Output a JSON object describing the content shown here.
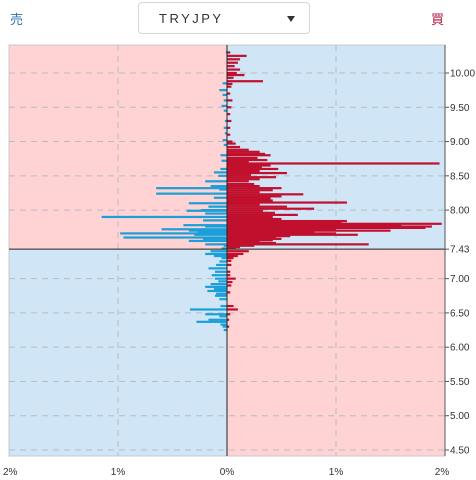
{
  "header": {
    "sell_label": "売",
    "buy_label": "買",
    "pair": "TRYJPY",
    "caret_icon": "chevron-down-icon"
  },
  "colors": {
    "sell_bar": "#1a9fd9",
    "buy_bar": "#c0102e",
    "pink_bg": "#ffd3d3",
    "blue_bg": "#d0e6f6"
  },
  "chart_data": {
    "type": "bar",
    "orientation": "horizontal",
    "current_price": 7.43,
    "current_price_label": "7.43",
    "ylim": [
      4.45,
      10.5
    ],
    "xlim": [
      -2,
      2
    ],
    "y_ticks": [
      "10.00",
      "9.50",
      "9.00",
      "8.50",
      "8.00",
      "7.43",
      "7.00",
      "6.50",
      "6.00",
      "5.50",
      "5.00",
      "4.50"
    ],
    "y_tick_values": [
      10.0,
      9.5,
      9.0,
      8.5,
      8.0,
      7.43,
      7.0,
      6.5,
      6.0,
      5.5,
      5.0,
      4.5
    ],
    "x_ticks": [
      "2%",
      "1%",
      "0%",
      "1%",
      "2%"
    ],
    "x_tick_values": [
      -2,
      -1,
      0,
      1,
      2
    ],
    "grid": true,
    "buy_positions": [
      [
        10.3,
        0.03
      ],
      [
        10.25,
        0.18
      ],
      [
        10.2,
        0.12
      ],
      [
        10.15,
        0.1
      ],
      [
        10.1,
        0.07
      ],
      [
        10.05,
        0.12
      ],
      [
        10.0,
        0.09
      ],
      [
        9.97,
        0.16
      ],
      [
        9.93,
        0.06
      ],
      [
        9.88,
        0.33
      ],
      [
        9.84,
        0.05
      ],
      [
        9.8,
        0.04
      ],
      [
        9.7,
        0.03
      ],
      [
        9.6,
        0.05
      ],
      [
        9.5,
        0.04
      ],
      [
        9.4,
        0.03
      ],
      [
        9.3,
        0.04
      ],
      [
        9.2,
        0.03
      ],
      [
        9.1,
        0.03
      ],
      [
        9.0,
        0.05
      ],
      [
        8.97,
        0.08
      ],
      [
        8.92,
        0.12
      ],
      [
        8.88,
        0.2
      ],
      [
        8.85,
        0.3
      ],
      [
        8.82,
        0.35
      ],
      [
        8.8,
        0.4
      ],
      [
        8.76,
        0.28
      ],
      [
        8.73,
        0.37
      ],
      [
        8.7,
        0.2
      ],
      [
        8.68,
        1.95
      ],
      [
        8.65,
        0.4
      ],
      [
        8.62,
        0.32
      ],
      [
        8.6,
        0.47
      ],
      [
        8.57,
        0.3
      ],
      [
        8.54,
        0.55
      ],
      [
        8.51,
        0.22
      ],
      [
        8.48,
        0.45
      ],
      [
        8.45,
        0.3
      ],
      [
        8.42,
        0.2
      ],
      [
        8.38,
        0.25
      ],
      [
        8.35,
        0.3
      ],
      [
        8.32,
        0.5
      ],
      [
        8.29,
        0.42
      ],
      [
        8.26,
        0.3
      ],
      [
        8.23,
        0.7
      ],
      [
        8.2,
        0.5
      ],
      [
        8.17,
        0.4
      ],
      [
        8.14,
        0.42
      ],
      [
        8.11,
        1.1
      ],
      [
        8.08,
        0.3
      ],
      [
        8.05,
        0.55
      ],
      [
        8.02,
        0.8
      ],
      [
        7.99,
        0.33
      ],
      [
        7.96,
        0.44
      ],
      [
        7.93,
        0.65
      ],
      [
        7.9,
        0.42
      ],
      [
        7.87,
        0.5
      ],
      [
        7.84,
        1.1
      ],
      [
        7.82,
        1.05
      ],
      [
        7.8,
        1.97
      ],
      [
        7.78,
        1.6
      ],
      [
        7.76,
        1.88
      ],
      [
        7.74,
        1.82
      ],
      [
        7.72,
        1.0
      ],
      [
        7.7,
        1.5
      ],
      [
        7.68,
        0.8
      ],
      [
        7.66,
        1.0
      ],
      [
        7.64,
        1.2
      ],
      [
        7.62,
        0.58
      ],
      [
        7.6,
        0.45
      ],
      [
        7.58,
        0.5
      ],
      [
        7.56,
        0.42
      ],
      [
        7.54,
        0.3
      ],
      [
        7.52,
        0.45
      ],
      [
        7.5,
        1.3
      ],
      [
        7.48,
        0.25
      ],
      [
        7.46,
        0.12
      ],
      [
        7.45,
        0.08
      ],
      [
        7.4,
        0.2
      ],
      [
        7.36,
        0.15
      ],
      [
        7.33,
        0.1
      ],
      [
        7.3,
        0.06
      ],
      [
        7.26,
        0.04
      ],
      [
        7.2,
        0.04
      ],
      [
        7.1,
        0.03
      ],
      [
        7.05,
        0.03
      ],
      [
        7.0,
        0.08
      ],
      [
        6.95,
        0.05
      ],
      [
        6.9,
        0.04
      ],
      [
        6.8,
        0.03
      ],
      [
        6.6,
        0.06
      ],
      [
        6.55,
        0.1
      ],
      [
        6.48,
        0.03
      ],
      [
        6.4,
        0.02
      ],
      [
        6.3,
        0.02
      ]
    ],
    "sell_positions": [
      [
        10.3,
        0.01
      ],
      [
        9.85,
        0.04
      ],
      [
        9.75,
        0.07
      ],
      [
        9.68,
        0.04
      ],
      [
        9.6,
        0.03
      ],
      [
        9.52,
        0.05
      ],
      [
        9.45,
        0.03
      ],
      [
        9.3,
        0.02
      ],
      [
        9.2,
        0.03
      ],
      [
        9.12,
        0.02
      ],
      [
        9.02,
        0.04
      ],
      [
        8.95,
        0.03
      ],
      [
        8.8,
        0.06
      ],
      [
        8.72,
        0.05
      ],
      [
        8.6,
        0.06
      ],
      [
        8.55,
        0.12
      ],
      [
        8.5,
        0.08
      ],
      [
        8.42,
        0.2
      ],
      [
        8.35,
        0.15
      ],
      [
        8.32,
        0.65
      ],
      [
        8.3,
        0.07
      ],
      [
        8.24,
        0.65
      ],
      [
        8.18,
        0.12
      ],
      [
        8.1,
        0.35
      ],
      [
        8.05,
        0.17
      ],
      [
        8.0,
        0.24
      ],
      [
        7.99,
        0.37
      ],
      [
        7.95,
        0.2
      ],
      [
        7.9,
        1.15
      ],
      [
        7.85,
        0.22
      ],
      [
        7.78,
        0.4
      ],
      [
        7.76,
        0.2
      ],
      [
        7.72,
        0.6
      ],
      [
        7.7,
        0.35
      ],
      [
        7.68,
        0.27
      ],
      [
        7.66,
        0.98
      ],
      [
        7.64,
        0.3
      ],
      [
        7.6,
        0.95
      ],
      [
        7.58,
        0.22
      ],
      [
        7.55,
        0.35
      ],
      [
        7.5,
        0.2
      ],
      [
        7.48,
        0.03
      ],
      [
        7.44,
        0.05
      ],
      [
        7.4,
        0.15
      ],
      [
        7.36,
        0.2
      ],
      [
        7.33,
        0.12
      ],
      [
        7.3,
        0.05
      ],
      [
        7.25,
        0.07
      ],
      [
        7.2,
        0.1
      ],
      [
        7.15,
        0.17
      ],
      [
        7.1,
        0.11
      ],
      [
        7.05,
        0.14
      ],
      [
        7.0,
        0.11
      ],
      [
        6.96,
        0.08
      ],
      [
        6.92,
        0.15
      ],
      [
        6.88,
        0.2
      ],
      [
        6.85,
        0.12
      ],
      [
        6.82,
        0.18
      ],
      [
        6.78,
        0.1
      ],
      [
        6.75,
        0.11
      ],
      [
        6.7,
        0.07
      ],
      [
        6.6,
        0.06
      ],
      [
        6.55,
        0.34
      ],
      [
        6.48,
        0.2
      ],
      [
        6.45,
        0.07
      ],
      [
        6.4,
        0.17
      ],
      [
        6.37,
        0.28
      ],
      [
        6.33,
        0.06
      ],
      [
        6.3,
        0.04
      ],
      [
        6.25,
        0.03
      ]
    ]
  }
}
